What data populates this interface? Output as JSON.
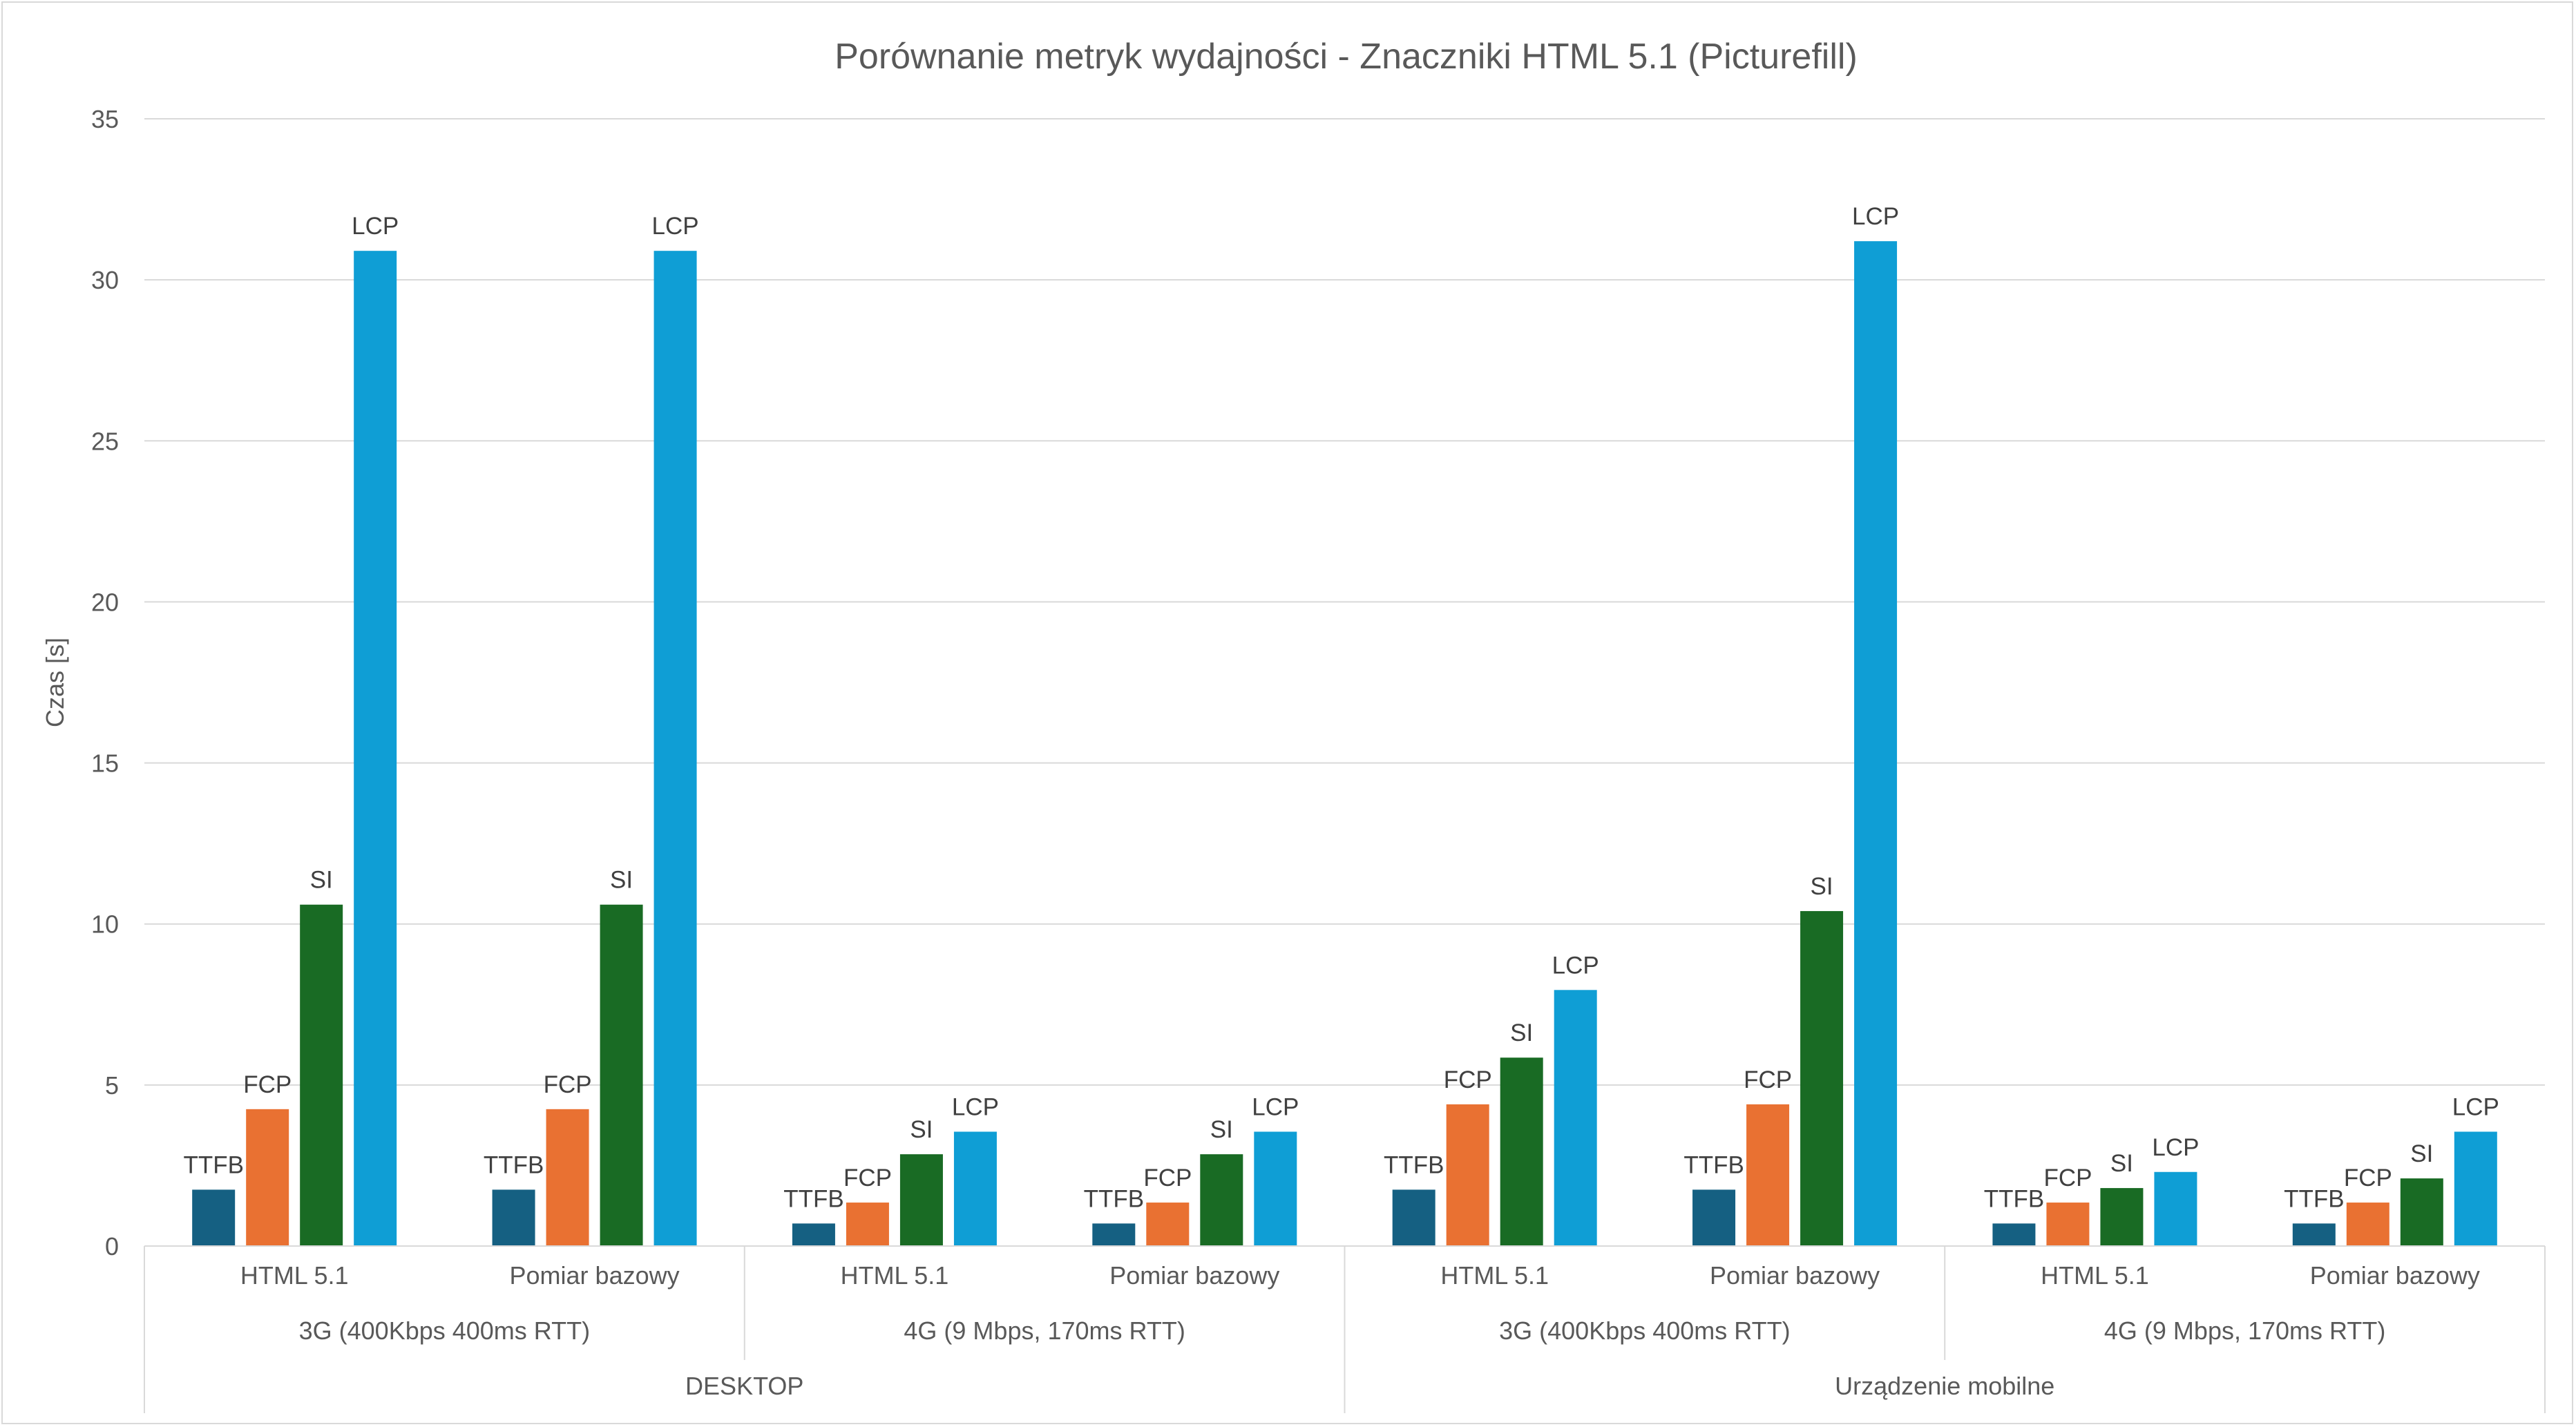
{
  "chart_data": {
    "type": "bar",
    "title": "Porównanie metryk wydajności - Znaczniki HTML 5.1 (Picturefill)",
    "ylabel": "Czas [s]",
    "xlabel": "",
    "ylim": [
      0,
      35
    ],
    "yticks": [
      0,
      5,
      10,
      15,
      20,
      25,
      30,
      35
    ],
    "grid": true,
    "legend": "none",
    "metrics": [
      "TTFB",
      "FCP",
      "SI",
      "LCP"
    ],
    "colors": {
      "TTFB": "#156082",
      "FCP": "#E97132",
      "SI": "#196B24",
      "LCP": "#0F9ED5"
    },
    "categories": [
      "HTML 5.1",
      "Pomiar bazowy",
      "HTML 5.1",
      "Pomiar bazowy",
      "HTML 5.1",
      "Pomiar bazowy",
      "HTML 5.1",
      "Pomiar bazowy"
    ],
    "network_groups": [
      "3G (400Kbps 400ms RTT)",
      "4G (9 Mbps, 170ms RTT)",
      "3G (400Kbps 400ms RTT)",
      "4G (9 Mbps, 170ms RTT)"
    ],
    "device_groups": [
      "DESKTOP",
      "Urządzenie mobilne"
    ],
    "series": [
      {
        "name": "TTFB",
        "values": [
          1.75,
          1.75,
          0.7,
          0.7,
          1.75,
          1.75,
          0.7,
          0.7
        ]
      },
      {
        "name": "FCP",
        "values": [
          4.25,
          4.25,
          1.35,
          1.35,
          4.4,
          4.4,
          1.35,
          1.35
        ]
      },
      {
        "name": "SI",
        "values": [
          10.6,
          10.6,
          2.85,
          2.85,
          5.85,
          10.4,
          1.8,
          2.1
        ]
      },
      {
        "name": "LCP",
        "values": [
          30.9,
          30.9,
          3.55,
          3.55,
          7.95,
          31.2,
          2.3,
          3.55
        ]
      }
    ]
  }
}
